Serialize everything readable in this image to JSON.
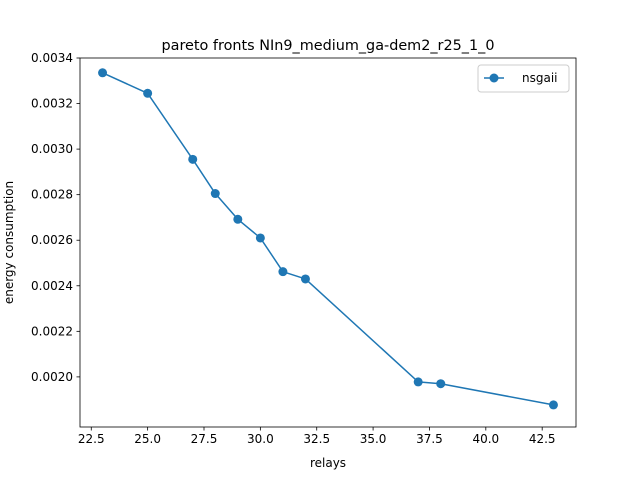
{
  "chart_data": {
    "type": "line",
    "title": "pareto fronts NIn9_medium_ga-dem2_r25_1_0",
    "xlabel": "relays",
    "ylabel": "energy consumption",
    "xlim": [
      22.0,
      44.0
    ],
    "ylim": [
      0.00178,
      0.0034
    ],
    "xticks": [
      22.5,
      25.0,
      27.5,
      30.0,
      32.5,
      35.0,
      37.5,
      40.0,
      42.5
    ],
    "xtick_labels": [
      "22.5",
      "25.0",
      "27.5",
      "30.0",
      "32.5",
      "35.0",
      "37.5",
      "40.0",
      "42.5"
    ],
    "yticks": [
      0.002,
      0.0022,
      0.0024,
      0.0026,
      0.0028,
      0.003,
      0.0032,
      0.0034
    ],
    "ytick_labels": [
      "0.0020",
      "0.0022",
      "0.0024",
      "0.0026",
      "0.0028",
      "0.0030",
      "0.0032",
      "0.0034"
    ],
    "grid": false,
    "legend_position": "top-right",
    "series": [
      {
        "name": "nsgaii",
        "color": "#1f77b4",
        "marker": "circle",
        "x": [
          23,
          25,
          27,
          28,
          29,
          30,
          31,
          32,
          37,
          38,
          43
        ],
        "y": [
          0.003335,
          0.003245,
          0.002955,
          0.002805,
          0.002692,
          0.00261,
          0.002462,
          0.00243,
          0.001978,
          0.00197,
          0.001877
        ]
      }
    ]
  }
}
